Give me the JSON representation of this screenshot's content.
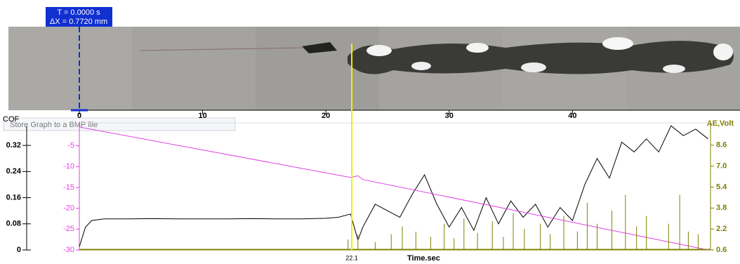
{
  "chart_data": {
    "type": "line",
    "cursor_label": {
      "time": "T = 0.0000 s",
      "dx": "ΔX = 0.7720 mm"
    },
    "cursor_x": 22.1,
    "tooltip": "Store Graph to a BMP file",
    "x_label": "Time.sec",
    "y_label": "COF",
    "y2_label": "AE,Volt",
    "xlim": [
      0,
      51.2
    ],
    "xticks": [
      0,
      10,
      20,
      30,
      40
    ],
    "ylim": [
      0,
      0.389
    ],
    "yticks": [
      0,
      0.08,
      0.16,
      0.24,
      0.32
    ],
    "y3lim": [
      -30,
      0.5
    ],
    "y3ticks": [
      -30,
      -25,
      -20,
      -15,
      -10,
      -5
    ],
    "y2lim": [
      0.6,
      10.3
    ],
    "y2ticks": [
      0.6,
      2.2,
      3.8,
      5.4,
      {
        "value": 7,
        "label": "7.0"
      },
      8.6
    ],
    "series": [
      {
        "type": "line",
        "axis": "y",
        "color": "#000000",
        "x": [
          0,
          0.5,
          1,
          2,
          4,
          6,
          8,
          10,
          12,
          14,
          16,
          18,
          20,
          21,
          22,
          22.6,
          23,
          24,
          25,
          26,
          27,
          28,
          29,
          30,
          31,
          32,
          33,
          34,
          35,
          36,
          37,
          38,
          39,
          40,
          41,
          42,
          43,
          44,
          45,
          46,
          47,
          48,
          49,
          50,
          51
        ],
        "values": [
          0.01,
          0.07,
          0.09,
          0.095,
          0.095,
          0.096,
          0.095,
          0.095,
          0.095,
          0.096,
          0.095,
          0.095,
          0.097,
          0.1,
          0.11,
          0.03,
          0.07,
          0.14,
          0.12,
          0.1,
          0.17,
          0.23,
          0.14,
          0.07,
          0.13,
          0.06,
          0.16,
          0.08,
          0.15,
          0.1,
          0.14,
          0.07,
          0.13,
          0.09,
          0.2,
          0.28,
          0.22,
          0.33,
          0.3,
          0.34,
          0.3,
          0.38,
          0.35,
          0.37,
          0.34
        ]
      },
      {
        "type": "line",
        "axis": "y3",
        "color": "#e040e0",
        "x": [
          0,
          22,
          22.6,
          23,
          51
        ],
        "values": [
          -0.5,
          -12.6,
          -12.2,
          -13.1,
          -30
        ]
      },
      {
        "type": "stem",
        "axis": "y2",
        "color": "#808000",
        "x": [
          21.8,
          22.6,
          24,
          25.3,
          26.2,
          27.3,
          28.5,
          29.6,
          30.4,
          31.2,
          32.3,
          33.5,
          34.4,
          35.2,
          36.1,
          37.4,
          38.2,
          39.3,
          40.4,
          41.2,
          42,
          43.2,
          44.3,
          45.2,
          46,
          47.8,
          48.7,
          49.4,
          50.2
        ],
        "values": [
          1.4,
          1.8,
          1.2,
          1.8,
          2.4,
          2,
          1.6,
          2.6,
          1.5,
          3,
          1.9,
          2.8,
          1.6,
          3.4,
          2.2,
          2.6,
          1.8,
          3.2,
          2,
          4.2,
          2.6,
          3.6,
          4.8,
          2.4,
          3.2,
          2.6,
          4.8,
          2,
          1.8
        ]
      }
    ]
  }
}
